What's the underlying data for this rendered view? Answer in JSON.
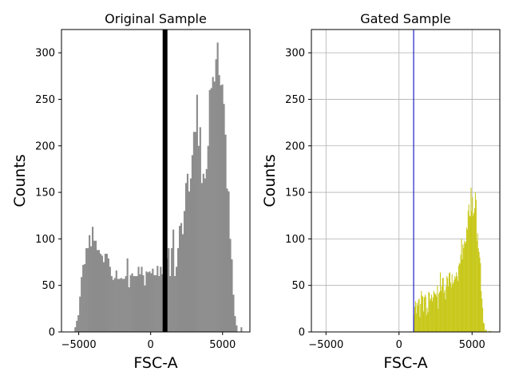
{
  "chart_data": [
    {
      "type": "histogram",
      "title": "Original Sample",
      "xlabel": "FSC-A",
      "ylabel": "Counts",
      "xlim": [
        -6200,
        6900
      ],
      "ylim": [
        0,
        325
      ],
      "xticks": [
        -5000,
        0,
        5000
      ],
      "xtick_labels": [
        "−5000",
        "0",
        "5000"
      ],
      "yticks": [
        0,
        50,
        100,
        150,
        200,
        250,
        300
      ],
      "ytick_labels": [
        "0",
        "50",
        "100",
        "150",
        "200",
        "250",
        "300"
      ],
      "grid": false,
      "bar_color": "#8c8c8c",
      "bin_start": -5300,
      "bin_width": 110,
      "values": [
        5,
        12,
        18,
        38,
        59,
        72,
        73,
        90,
        90,
        104,
        92,
        113,
        98,
        98,
        88,
        88,
        84,
        82,
        75,
        84,
        84,
        79,
        70,
        60,
        56,
        58,
        66,
        57,
        57,
        58,
        57,
        57,
        60,
        79,
        48,
        61,
        63,
        60,
        60,
        60,
        70,
        62,
        70,
        61,
        50,
        65,
        64,
        65,
        63,
        68,
        61,
        61,
        71,
        60,
        70,
        62,
        72,
        100,
        79,
        90,
        60,
        90,
        110,
        60,
        70,
        90,
        114,
        117,
        105,
        130,
        160,
        170,
        151,
        165,
        190,
        215,
        215,
        255,
        200,
        220,
        160,
        170,
        165,
        175,
        200,
        260,
        262,
        274,
        269,
        293,
        311,
        276,
        265,
        266,
        245,
        212,
        154,
        151,
        100,
        78,
        40,
        17,
        7,
        0,
        0,
        5
      ],
      "gate_line": {
        "x": 1000,
        "color": "#000000"
      }
    },
    {
      "type": "histogram",
      "title": "Gated Sample",
      "xlabel": "FSC-A",
      "ylabel": "Counts",
      "xlim": [
        -6000,
        6900
      ],
      "ylim": [
        0,
        325
      ],
      "xticks": [
        -5000,
        0,
        5000
      ],
      "xtick_labels": [
        "−5000",
        "0",
        "5000"
      ],
      "yticks": [
        0,
        50,
        100,
        150,
        200,
        250,
        300
      ],
      "ytick_labels": [
        "0",
        "50",
        "100",
        "150",
        "200",
        "250",
        "300"
      ],
      "grid": true,
      "bar_color": "#c8c81a",
      "bin_start": 1000,
      "bin_width": 50,
      "values": [
        18,
        27,
        33,
        20,
        31,
        28,
        34,
        36,
        16,
        30,
        44,
        39,
        38,
        22,
        37,
        40,
        38,
        18,
        26,
        21,
        43,
        42,
        34,
        36,
        40,
        33,
        37,
        44,
        42,
        40,
        41,
        38,
        50,
        25,
        41,
        43,
        64,
        44,
        49,
        58,
        58,
        42,
        45,
        35,
        49,
        60,
        58,
        49,
        63,
        64,
        53,
        48,
        62,
        51,
        53,
        56,
        60,
        58,
        64,
        60,
        55,
        71,
        74,
        73,
        83,
        100,
        78,
        94,
        90,
        98,
        95,
        97,
        112,
        110,
        130,
        137,
        125,
        124,
        155,
        130,
        145,
        125,
        128,
        133,
        150,
        142,
        98,
        106,
        90,
        86,
        80,
        74,
        44,
        36,
        26,
        10,
        9,
        1,
        3,
        2,
        0,
        0,
        1,
        0,
        1,
        1
      ],
      "gate_line": {
        "x": 1000,
        "color": "#2020c8"
      }
    }
  ]
}
